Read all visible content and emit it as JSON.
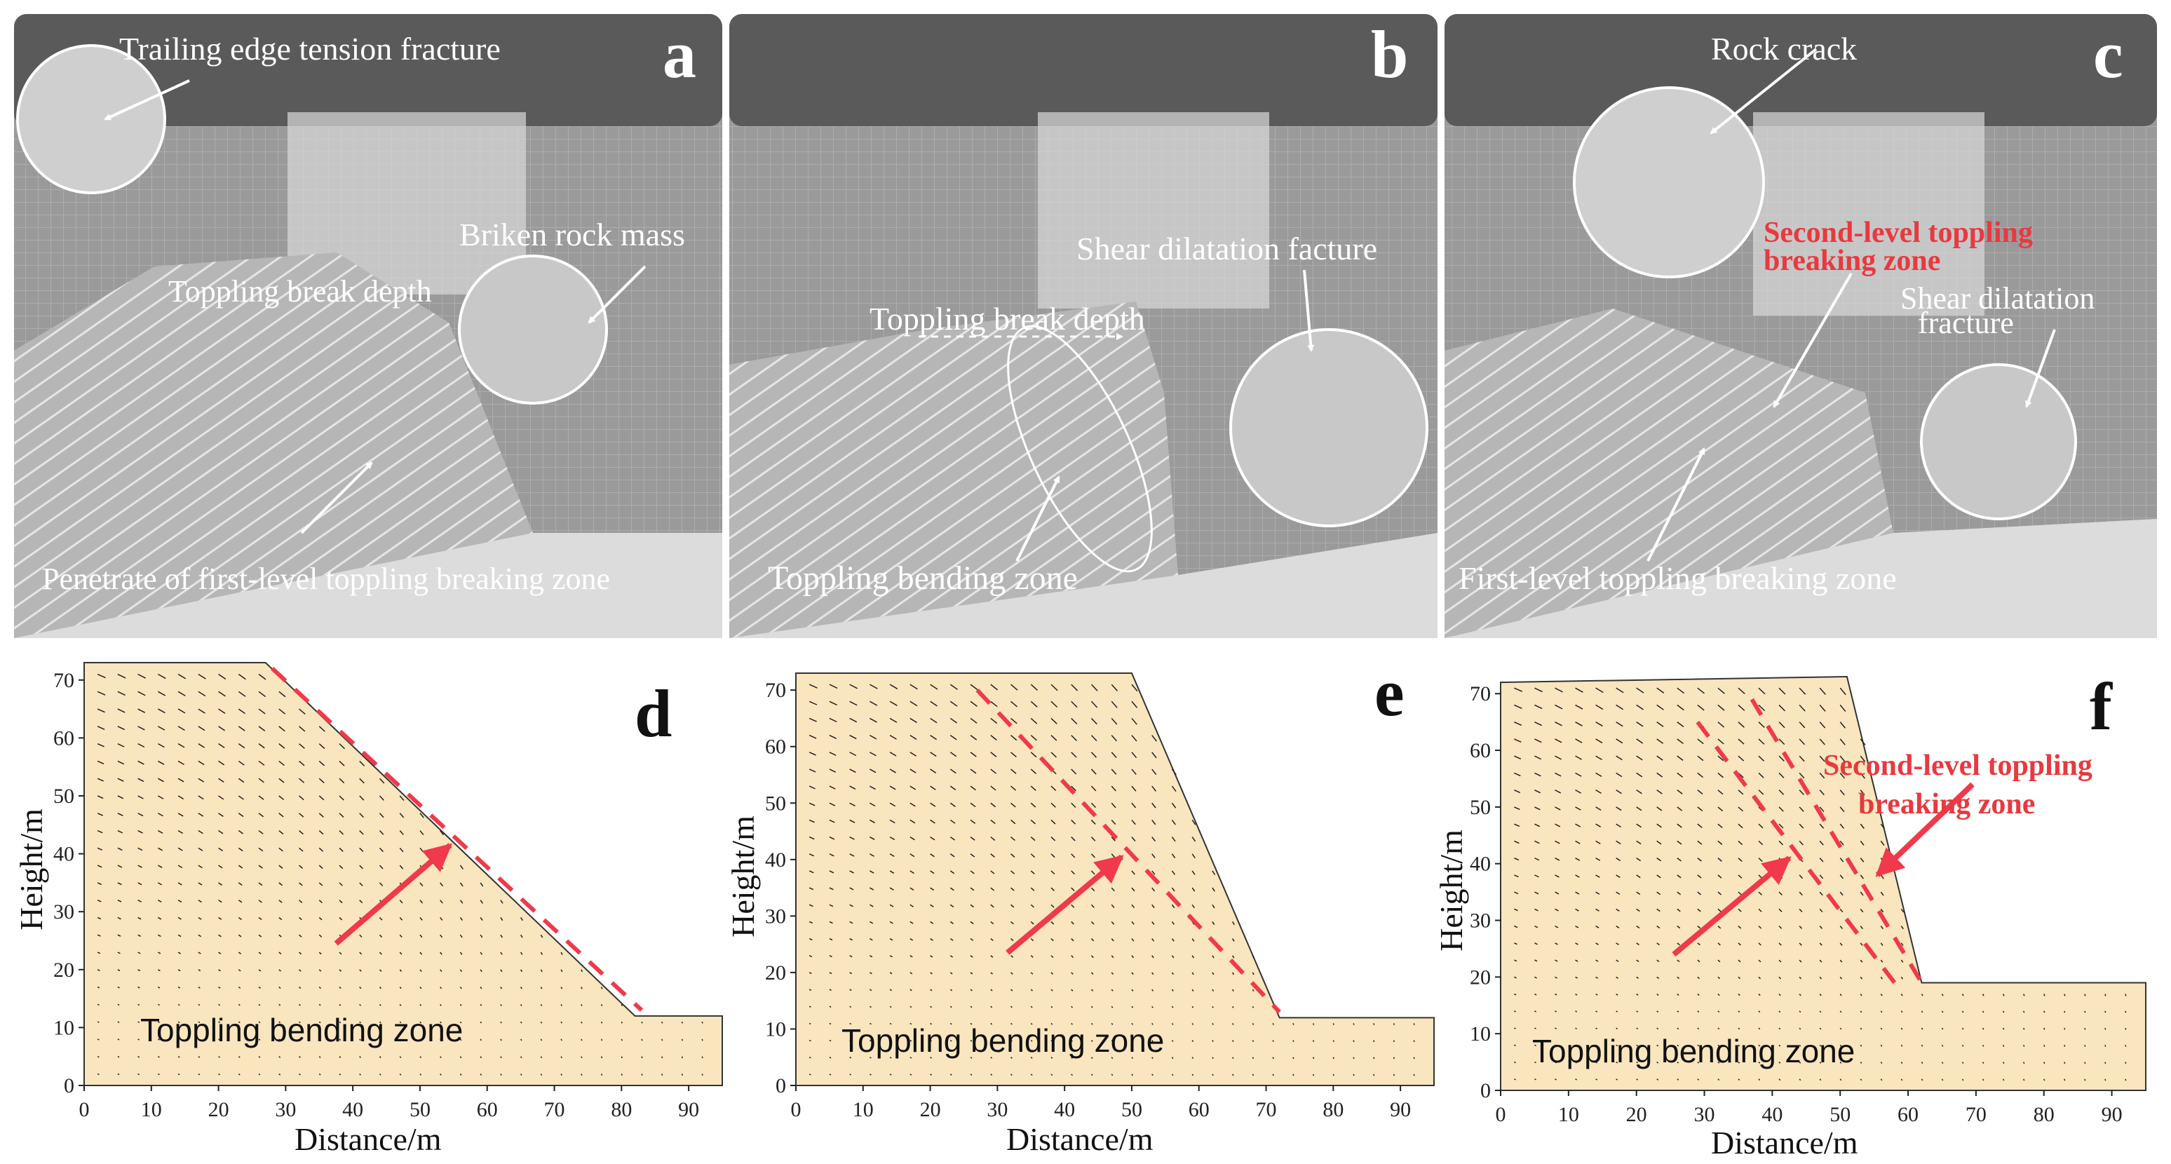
{
  "colors": {
    "accent_red": "#f0394b",
    "slope_fill": "#f9e6bf",
    "photo_bg": "#6b6b6b"
  },
  "photos": [
    {
      "letter": "a",
      "annotations": {
        "a1": "Trailing edge tension fracture",
        "a2": "Briken rock mass",
        "a3": "Toppling break depth",
        "a4": "Penetrate of first-level toppling breaking zone"
      }
    },
    {
      "letter": "b",
      "annotations": {
        "b1": "Shear dilatation facture",
        "b2": "Toppling break depth",
        "b3": "Toppling bending zone"
      }
    },
    {
      "letter": "c",
      "annotations": {
        "c1": "Rock crack",
        "c2a": "Second-level toppling",
        "c2b": "breaking zone",
        "c3a": "Shear dilatation",
        "c3b": "fracture",
        "c4": "First-level toppling breaking zone"
      }
    }
  ],
  "plots": [
    {
      "letter": "d",
      "xlabel": "Distance/m",
      "ylabel": "Height/m",
      "xticks": [
        "0",
        "10",
        "20",
        "30",
        "40",
        "50",
        "60",
        "70",
        "80",
        "90"
      ],
      "yticks": [
        "0",
        "10",
        "20",
        "30",
        "40",
        "50",
        "60",
        "70"
      ],
      "annotation": "Toppling bending zone"
    },
    {
      "letter": "e",
      "xlabel": "Distance/m",
      "ylabel": "Height/m",
      "xticks": [
        "0",
        "10",
        "20",
        "30",
        "40",
        "50",
        "60",
        "70",
        "80",
        "90"
      ],
      "yticks": [
        "0",
        "10",
        "20",
        "30",
        "40",
        "50",
        "60",
        "70"
      ],
      "annotation": "Toppling bending zone"
    },
    {
      "letter": "f",
      "xlabel": "Distance/m",
      "ylabel": "Height/m",
      "xticks": [
        "0",
        "10",
        "20",
        "30",
        "40",
        "50",
        "60",
        "70",
        "80",
        "90"
      ],
      "yticks": [
        "0",
        "10",
        "20",
        "30",
        "40",
        "50",
        "60",
        "70"
      ],
      "annotation": "Toppling bending zone",
      "annotation_red_1": "Second-level toppling",
      "annotation_red_2": "breaking zone"
    }
  ],
  "chart_data": [
    {
      "type": "diagram",
      "x_range": [
        0,
        95
      ],
      "y_range": [
        0,
        73
      ],
      "slope_outline": [
        [
          0,
          73
        ],
        [
          27,
          73
        ],
        [
          82,
          12
        ],
        [
          95,
          12
        ],
        [
          95,
          0
        ],
        [
          0,
          0
        ]
      ],
      "dashed_lines": [
        [
          [
            28,
            72
          ],
          [
            83,
            13
          ]
        ]
      ]
    },
    {
      "type": "diagram",
      "x_range": [
        0,
        95
      ],
      "y_range": [
        0,
        73
      ],
      "slope_outline": [
        [
          0,
          73
        ],
        [
          50,
          73
        ],
        [
          72,
          12
        ],
        [
          95,
          12
        ],
        [
          95,
          0
        ],
        [
          0,
          0
        ]
      ],
      "dashed_lines": [
        [
          [
            27,
            70
          ],
          [
            72,
            13
          ]
        ]
      ]
    },
    {
      "type": "diagram",
      "x_range": [
        0,
        95
      ],
      "y_range": [
        0,
        73
      ],
      "slope_outline": [
        [
          0,
          72
        ],
        [
          51,
          73
        ],
        [
          62,
          19
        ],
        [
          95,
          19
        ],
        [
          95,
          0
        ],
        [
          0,
          0
        ]
      ],
      "dashed_lines": [
        [
          [
            29,
            65
          ],
          [
            58,
            19
          ]
        ],
        [
          [
            37,
            69
          ],
          [
            62,
            19
          ]
        ]
      ]
    }
  ]
}
